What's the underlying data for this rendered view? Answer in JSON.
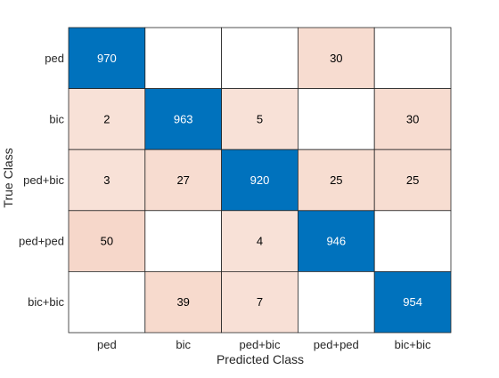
{
  "chart_data": {
    "type": "heatmap",
    "title": "",
    "xlabel": "Predicted Class",
    "ylabel": "True Class",
    "x_categories": [
      "ped",
      "bic",
      "ped+bic",
      "ped+ped",
      "bic+bic"
    ],
    "y_categories": [
      "ped",
      "bic",
      "ped+bic",
      "ped+ped",
      "bic+bic"
    ],
    "matrix": [
      [
        970,
        0,
        0,
        30,
        0
      ],
      [
        2,
        963,
        5,
        0,
        30
      ],
      [
        3,
        27,
        920,
        25,
        25
      ],
      [
        50,
        0,
        4,
        946,
        0
      ],
      [
        0,
        39,
        7,
        0,
        954
      ]
    ],
    "show_zero_labels": false,
    "diagonal_color": "#0072BD",
    "offdiag_color": "#D95319",
    "diagonal_text_color": "#ffffff",
    "offdiag_text_color": "#000000",
    "grid": true
  }
}
